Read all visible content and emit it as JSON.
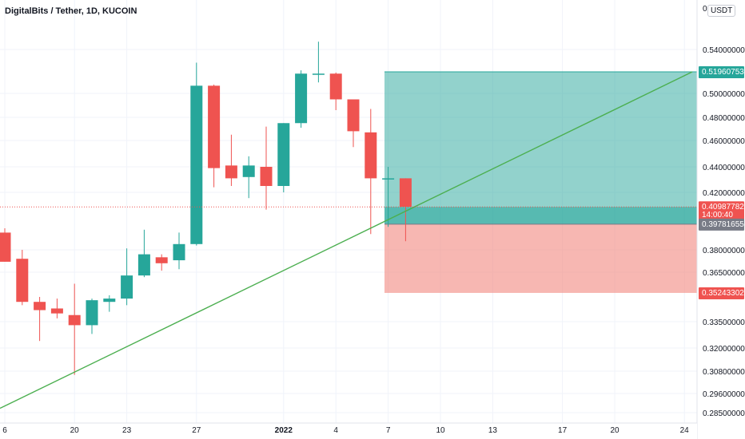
{
  "header": {
    "title": "DigitalBits / Tether, 1D, KUCOIN",
    "currency": "USDT"
  },
  "colors": {
    "up": "#26a69a",
    "down": "#ef5350",
    "trendline": "#4caf50",
    "profit_zone": "#26a69a",
    "loss_zone": "#f28b82"
  },
  "chart_data": {
    "type": "candlestick",
    "x_tick_labels": [
      "6",
      "20",
      "23",
      "27",
      "2022",
      "4",
      "7",
      "10",
      "13",
      "17",
      "20",
      "24"
    ],
    "y_tick_labels": [
      "0.54000000",
      "0.50000000",
      "0.48000000",
      "0.46000000",
      "0.44000000",
      "0.42000000",
      "0.38000000",
      "0.36500000",
      "0.33500000",
      "0.32000000",
      "0.30800000",
      "0.29600000",
      "0.28500000"
    ],
    "y_tick_values": [
      0.54,
      0.5,
      0.48,
      0.46,
      0.44,
      0.42,
      0.38,
      0.365,
      0.335,
      0.32,
      0.308,
      0.296,
      0.285
    ],
    "candles": [
      {
        "o": 0.392,
        "h": 0.395,
        "l": 0.372,
        "c": 0.372
      },
      {
        "o": 0.374,
        "h": 0.38,
        "l": 0.345,
        "c": 0.347
      },
      {
        "o": 0.347,
        "h": 0.35,
        "l": 0.324,
        "c": 0.342
      },
      {
        "o": 0.343,
        "h": 0.349,
        "l": 0.337,
        "c": 0.34
      },
      {
        "o": 0.339,
        "h": 0.358,
        "l": 0.306,
        "c": 0.333
      },
      {
        "o": 0.333,
        "h": 0.349,
        "l": 0.328,
        "c": 0.348
      },
      {
        "o": 0.347,
        "h": 0.351,
        "l": 0.341,
        "c": 0.349
      },
      {
        "o": 0.349,
        "h": 0.381,
        "l": 0.345,
        "c": 0.363
      },
      {
        "o": 0.363,
        "h": 0.394,
        "l": 0.362,
        "c": 0.377
      },
      {
        "o": 0.375,
        "h": 0.377,
        "l": 0.366,
        "c": 0.371
      },
      {
        "o": 0.373,
        "h": 0.392,
        "l": 0.367,
        "c": 0.384
      },
      {
        "o": 0.384,
        "h": 0.528,
        "l": 0.383,
        "c": 0.507
      },
      {
        "o": 0.507,
        "h": 0.508,
        "l": 0.424,
        "c": 0.439
      },
      {
        "o": 0.441,
        "h": 0.465,
        "l": 0.425,
        "c": 0.431
      },
      {
        "o": 0.432,
        "h": 0.448,
        "l": 0.416,
        "c": 0.441
      },
      {
        "o": 0.44,
        "h": 0.472,
        "l": 0.408,
        "c": 0.425
      },
      {
        "o": 0.425,
        "h": 0.475,
        "l": 0.42,
        "c": 0.475
      },
      {
        "o": 0.475,
        "h": 0.521,
        "l": 0.471,
        "c": 0.518
      },
      {
        "o": 0.518,
        "h": 0.547,
        "l": 0.51,
        "c": 0.518
      },
      {
        "o": 0.518,
        "h": 0.519,
        "l": 0.486,
        "c": 0.495
      },
      {
        "o": 0.495,
        "h": 0.495,
        "l": 0.455,
        "c": 0.468
      },
      {
        "o": 0.467,
        "h": 0.487,
        "l": 0.391,
        "c": 0.431
      },
      {
        "o": 0.431,
        "h": 0.44,
        "l": 0.396,
        "c": 0.431
      },
      {
        "o": 0.431,
        "h": 0.431,
        "l": 0.386,
        "c": 0.41
      }
    ],
    "current_price": 0.40987782,
    "current_price_label": "0.40987782",
    "countdown": "14:00:40",
    "position": {
      "entry": 0.39781655,
      "entry_label": "0.39781655",
      "target": 0.51960753,
      "target_label": "0.51960753",
      "stop": 0.35243302,
      "stop_label": "0.35243302"
    }
  }
}
